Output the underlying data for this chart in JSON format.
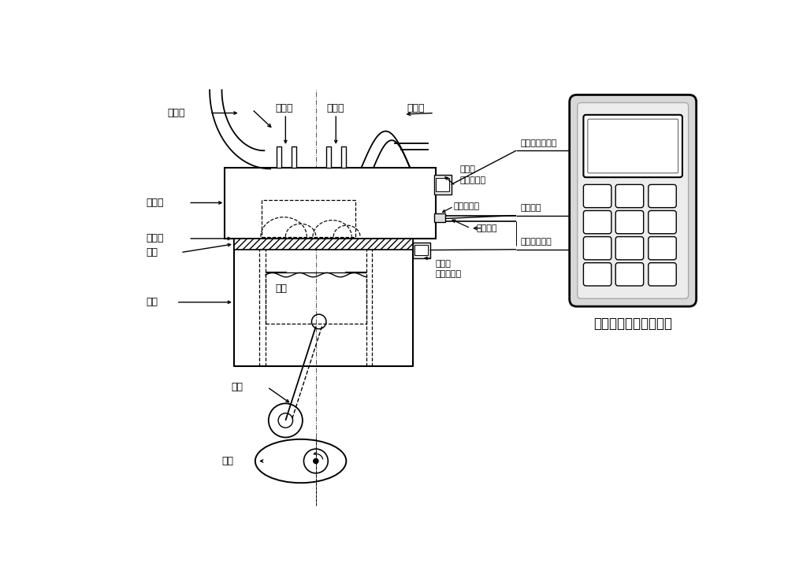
{
  "title": "柴油机气缸状态分析仪",
  "bg_color": "#ffffff",
  "line_color": "#000000",
  "labels": {
    "intake_pipe": "进气管",
    "intake_valve": "进气门",
    "exhaust_valve": "排气门",
    "exhaust_pipe": "排气管",
    "cylinder_cover": "气缸盖",
    "cylinder_sleeve": "气缸套",
    "frame": "机座",
    "piston": "活塞",
    "water_jacket": "水套",
    "connecting_rod": "连杆",
    "crankshaft": "曲轴",
    "cover_vib_sensor": "气缸盖\n振动传感器",
    "oil_pressure_sensor": "油压传感器",
    "high_pressure_pipe": "高压油管",
    "sleeve_vib_sensor": "气缸套\n振动传感器",
    "cover_vib_signal": "气缸盖振动信号",
    "oil_pressure_signal": "油压信号",
    "cylinder_vib_signal": "气缸振动信号"
  }
}
